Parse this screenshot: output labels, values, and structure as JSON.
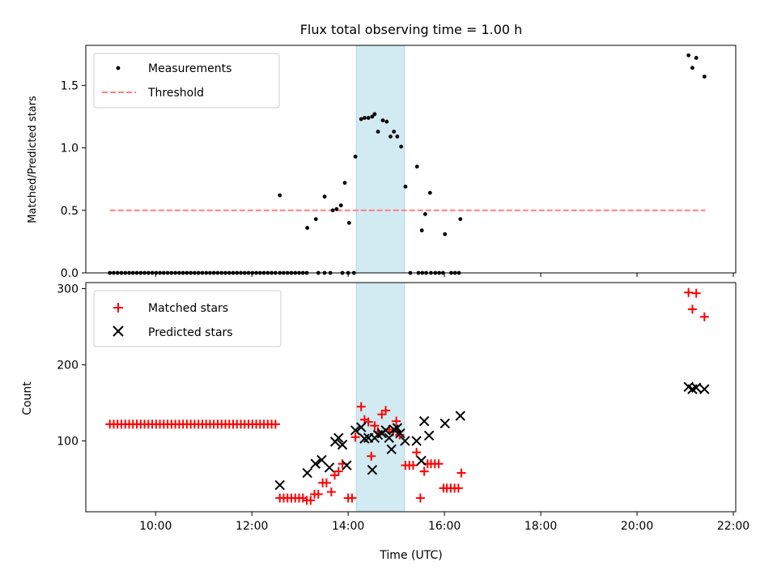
{
  "chart_data": [
    {
      "type": "scatter",
      "title": "Flux total observing time = 1.00 h",
      "ylabel": "Matched/Predicted stars",
      "xlim": [
        8.55,
        22.05
      ],
      "ylim": [
        0,
        1.82
      ],
      "yticks": [
        0,
        0.5,
        1.0,
        1.5
      ],
      "ytick_labels": [
        "0.0",
        "0.5",
        "1.0",
        "1.5"
      ],
      "xticks": [
        10,
        12,
        14,
        16,
        18,
        20,
        22
      ],
      "shade": [
        14.17,
        15.17
      ],
      "threshold": {
        "name": "Threshold",
        "y": 0.5,
        "x": [
          9.05,
          21.42
        ]
      },
      "legend": [
        "Measurements",
        "Threshold"
      ],
      "series": [
        {
          "name": "Measurements",
          "points": [
            [
              9.05,
              0
            ],
            [
              9.13,
              0
            ],
            [
              9.21,
              0
            ],
            [
              9.29,
              0
            ],
            [
              9.37,
              0
            ],
            [
              9.45,
              0
            ],
            [
              9.53,
              0
            ],
            [
              9.61,
              0
            ],
            [
              9.69,
              0
            ],
            [
              9.77,
              0
            ],
            [
              9.85,
              0
            ],
            [
              9.93,
              0
            ],
            [
              10.01,
              0
            ],
            [
              10.09,
              0
            ],
            [
              10.17,
              0
            ],
            [
              10.25,
              0
            ],
            [
              10.33,
              0
            ],
            [
              10.41,
              0
            ],
            [
              10.49,
              0
            ],
            [
              10.57,
              0
            ],
            [
              10.65,
              0
            ],
            [
              10.73,
              0
            ],
            [
              10.81,
              0
            ],
            [
              10.89,
              0
            ],
            [
              10.97,
              0
            ],
            [
              11.05,
              0
            ],
            [
              11.13,
              0
            ],
            [
              11.21,
              0
            ],
            [
              11.29,
              0
            ],
            [
              11.37,
              0
            ],
            [
              11.45,
              0
            ],
            [
              11.53,
              0
            ],
            [
              11.61,
              0
            ],
            [
              11.69,
              0
            ],
            [
              11.77,
              0
            ],
            [
              11.85,
              0
            ],
            [
              11.93,
              0
            ],
            [
              12.01,
              0
            ],
            [
              12.09,
              0
            ],
            [
              12.17,
              0
            ],
            [
              12.25,
              0
            ],
            [
              12.33,
              0
            ],
            [
              12.41,
              0
            ],
            [
              12.49,
              0
            ],
            [
              12.58,
              0
            ],
            [
              12.66,
              0
            ],
            [
              12.74,
              0
            ],
            [
              12.82,
              0
            ],
            [
              12.9,
              0
            ],
            [
              12.98,
              0
            ],
            [
              13.06,
              0
            ],
            [
              13.14,
              0
            ],
            [
              13.38,
              0
            ],
            [
              13.51,
              0
            ],
            [
              13.63,
              0
            ],
            [
              13.88,
              0
            ],
            [
              14.0,
              0
            ],
            [
              14.12,
              0
            ],
            [
              12.58,
              0.62
            ],
            [
              13.15,
              0.36
            ],
            [
              13.33,
              0.43
            ],
            [
              13.51,
              0.61
            ],
            [
              13.68,
              0.5
            ],
            [
              13.76,
              0.51
            ],
            [
              13.85,
              0.54
            ],
            [
              13.93,
              0.72
            ],
            [
              14.02,
              0.4
            ],
            [
              14.15,
              0.93
            ],
            [
              14.27,
              1.23
            ],
            [
              14.34,
              1.24
            ],
            [
              14.42,
              1.24
            ],
            [
              14.5,
              1.25
            ],
            [
              14.55,
              1.27
            ],
            [
              14.62,
              1.13
            ],
            [
              14.72,
              1.22
            ],
            [
              14.8,
              1.21
            ],
            [
              14.88,
              1.09
            ],
            [
              14.95,
              1.13
            ],
            [
              15.02,
              1.09
            ],
            [
              15.1,
              1.01
            ],
            [
              15.19,
              0.69
            ],
            [
              15.29,
              0
            ],
            [
              15.46,
              0
            ],
            [
              15.54,
              0
            ],
            [
              15.62,
              0
            ],
            [
              15.72,
              0
            ],
            [
              15.81,
              0
            ],
            [
              15.89,
              0
            ],
            [
              15.97,
              0
            ],
            [
              16.14,
              0
            ],
            [
              16.22,
              0
            ],
            [
              16.3,
              0
            ],
            [
              15.43,
              0.85
            ],
            [
              15.53,
              0.34
            ],
            [
              15.6,
              0.47
            ],
            [
              15.7,
              0.64
            ],
            [
              16.01,
              0.31
            ],
            [
              16.33,
              0.43
            ],
            [
              21.07,
              1.74
            ],
            [
              21.15,
              1.64
            ],
            [
              21.23,
              1.72
            ],
            [
              21.4,
              1.57
            ]
          ]
        }
      ]
    },
    {
      "type": "scatter",
      "xlabel": "Time (UTC)",
      "ylabel": "Count",
      "xlim": [
        8.55,
        22.05
      ],
      "ylim": [
        7,
        308
      ],
      "yticks": [
        100,
        200,
        300
      ],
      "ytick_labels": [
        "100",
        "200",
        "300"
      ],
      "xticks": [
        10,
        12,
        14,
        16,
        18,
        20,
        22
      ],
      "xtick_labels": [
        "10:00",
        "12:00",
        "14:00",
        "16:00",
        "18:00",
        "20:00",
        "22:00"
      ],
      "shade": [
        14.17,
        15.17
      ],
      "legend": [
        "Matched stars",
        "Predicted stars"
      ],
      "series": [
        {
          "name": "Matched stars",
          "color": "#ff0000",
          "marker": "plus",
          "points": [
            [
              9.05,
              122
            ],
            [
              9.13,
              122
            ],
            [
              9.21,
              122
            ],
            [
              9.29,
              122
            ],
            [
              9.37,
              122
            ],
            [
              9.45,
              122
            ],
            [
              9.53,
              122
            ],
            [
              9.61,
              122
            ],
            [
              9.69,
              122
            ],
            [
              9.77,
              122
            ],
            [
              9.85,
              122
            ],
            [
              9.93,
              122
            ],
            [
              10.01,
              122
            ],
            [
              10.09,
              122
            ],
            [
              10.17,
              122
            ],
            [
              10.25,
              122
            ],
            [
              10.33,
              122
            ],
            [
              10.41,
              122
            ],
            [
              10.49,
              122
            ],
            [
              10.57,
              122
            ],
            [
              10.65,
              122
            ],
            [
              10.73,
              122
            ],
            [
              10.81,
              122
            ],
            [
              10.89,
              122
            ],
            [
              10.97,
              122
            ],
            [
              11.05,
              122
            ],
            [
              11.13,
              122
            ],
            [
              11.21,
              122
            ],
            [
              11.29,
              122
            ],
            [
              11.37,
              122
            ],
            [
              11.45,
              122
            ],
            [
              11.53,
              122
            ],
            [
              11.61,
              122
            ],
            [
              11.69,
              122
            ],
            [
              11.77,
              122
            ],
            [
              11.85,
              122
            ],
            [
              11.93,
              122
            ],
            [
              12.01,
              122
            ],
            [
              12.09,
              122
            ],
            [
              12.17,
              122
            ],
            [
              12.25,
              122
            ],
            [
              12.33,
              122
            ],
            [
              12.41,
              122
            ],
            [
              12.49,
              122
            ],
            [
              12.58,
              25
            ],
            [
              12.66,
              25
            ],
            [
              12.74,
              25
            ],
            [
              12.82,
              25
            ],
            [
              12.9,
              25
            ],
            [
              12.98,
              25
            ],
            [
              13.06,
              25
            ],
            [
              13.14,
              22
            ],
            [
              13.22,
              22
            ],
            [
              13.3,
              30
            ],
            [
              13.38,
              30
            ],
            [
              13.47,
              45
            ],
            [
              13.55,
              45
            ],
            [
              13.65,
              33
            ],
            [
              13.72,
              55
            ],
            [
              13.8,
              60
            ],
            [
              13.88,
              70
            ],
            [
              14.0,
              25
            ],
            [
              14.08,
              25
            ],
            [
              14.15,
              105
            ],
            [
              14.27,
              145
            ],
            [
              14.34,
              128
            ],
            [
              14.42,
              125
            ],
            [
              14.48,
              80
            ],
            [
              14.55,
              120
            ],
            [
              14.62,
              112
            ],
            [
              14.7,
              135
            ],
            [
              14.78,
              140
            ],
            [
              14.85,
              115
            ],
            [
              14.93,
              112
            ],
            [
              15.0,
              126
            ],
            [
              15.07,
              108
            ],
            [
              15.19,
              68
            ],
            [
              15.27,
              68
            ],
            [
              15.35,
              68
            ],
            [
              15.42,
              85
            ],
            [
              15.5,
              25
            ],
            [
              15.58,
              60
            ],
            [
              15.65,
              70
            ],
            [
              15.72,
              70
            ],
            [
              15.8,
              70
            ],
            [
              15.88,
              70
            ],
            [
              15.98,
              38
            ],
            [
              16.05,
              38
            ],
            [
              16.13,
              38
            ],
            [
              16.21,
              38
            ],
            [
              16.29,
              38
            ],
            [
              16.35,
              58
            ],
            [
              21.07,
              295
            ],
            [
              21.15,
              273
            ],
            [
              21.23,
              294
            ],
            [
              21.4,
              263
            ]
          ]
        },
        {
          "name": "Predicted stars",
          "color": "#000000",
          "marker": "x",
          "points": [
            [
              12.58,
              42
            ],
            [
              13.15,
              58
            ],
            [
              13.32,
              70
            ],
            [
              13.45,
              75
            ],
            [
              13.61,
              65
            ],
            [
              13.73,
              99
            ],
            [
              13.8,
              104
            ],
            [
              13.88,
              95
            ],
            [
              13.97,
              68
            ],
            [
              14.15,
              114
            ],
            [
              14.27,
              118
            ],
            [
              14.34,
              103
            ],
            [
              14.42,
              104
            ],
            [
              14.5,
              62
            ],
            [
              14.55,
              104
            ],
            [
              14.62,
              108
            ],
            [
              14.7,
              110
            ],
            [
              14.78,
              114
            ],
            [
              14.85,
              104
            ],
            [
              14.9,
              89
            ],
            [
              14.95,
              115
            ],
            [
              15.02,
              117
            ],
            [
              15.08,
              110
            ],
            [
              15.18,
              100
            ],
            [
              15.42,
              100
            ],
            [
              15.52,
              74
            ],
            [
              15.58,
              126
            ],
            [
              15.68,
              107
            ],
            [
              16.01,
              123
            ],
            [
              16.33,
              133
            ],
            [
              21.07,
              171
            ],
            [
              21.15,
              168
            ],
            [
              21.23,
              170
            ],
            [
              21.4,
              168
            ]
          ]
        }
      ]
    }
  ]
}
